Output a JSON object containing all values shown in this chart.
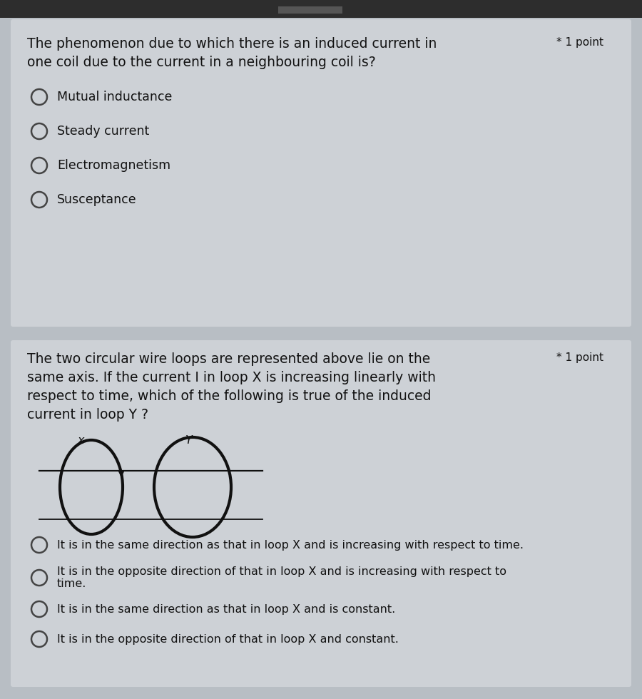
{
  "bg_color": "#b8bec4",
  "card_color": "#cdd1d6",
  "top_bar_color": "#2d2d2d",
  "tab_color": "#555555",
  "text_color": "#111111",
  "circle_color": "#444444",
  "loop_color": "#111111",
  "q1_line1": "The phenomenon due to which there is an induced current in",
  "q1_line2": "one coil due to the current in a neighbouring coil is?",
  "q1_point": "* 1 point",
  "q1_options": [
    "Mutual inductance",
    "Steady current",
    "Electromagnetism",
    "Susceptance"
  ],
  "q2_line1": "The two circular wire loops are represented above lie on the",
  "q2_line2": "same axis. If the current I in loop X is increasing linearly with",
  "q2_line3": "respect to time, which of the following is true of the induced",
  "q2_line4": "current in loop Y ?",
  "q2_point": "* 1 point",
  "q2_options": [
    "It is in the same direction as that in loop X and is increasing with respect to time.",
    "It is in the opposite direction of that in loop X and is increasing with respect to\ntime.",
    "It is in the same direction as that in loop X and is constant.",
    "It is in the opposite direction of that in loop X and constant."
  ],
  "title_fontsize": 13.5,
  "option_fontsize": 12.5,
  "point_fontsize": 11.0,
  "diagram_label_fontsize": 11.5
}
